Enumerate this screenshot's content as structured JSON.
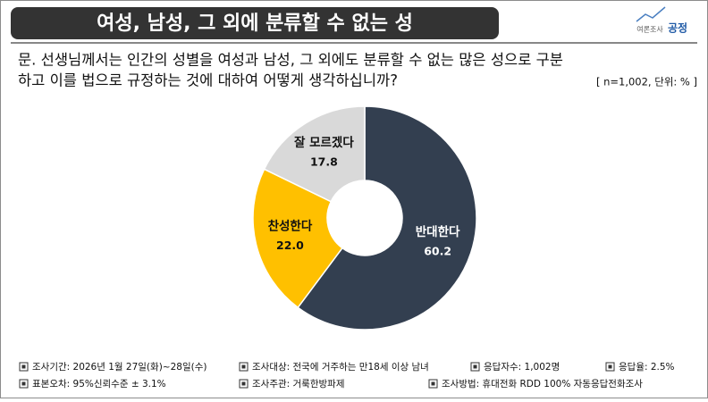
{
  "chart_data": {
    "type": "donut",
    "title": "여성, 남성, 그 외에 분류할 수 없는 성",
    "subtitle": [
      "문. 선생님께서는 인간의 성별을 여성과 남성, 그 외에도 분류할 수 없는 많은 성으로 구분",
      "하고 이를 법으로 규정하는 것에 대하여 어떻게 생각하십니까?"
    ],
    "annotation": "[ n=1,002, 단위: % ]",
    "categories": [
      "반대한다",
      "찬성한다",
      "잘 모르겠다"
    ],
    "values": [
      60.2,
      22.0,
      17.8
    ],
    "value_labels": [
      "60.2",
      "22.0",
      "17.8"
    ],
    "colors": [
      "#333f50",
      "#ffc000",
      "#d9d9d9"
    ]
  },
  "logo": {
    "small": "여론조사",
    "name": "공정"
  },
  "footer": [
    [
      "조사기간: 2026년 1월 27일(화)~28일(수)",
      "조사대상: 전국에 거주하는 만18세 이상 남녀",
      "응답자수: 1,002명",
      "응답율: 2.5%"
    ],
    [
      "표본오차: 95%신뢰수준 ± 3.1%",
      "조사주관: 거룩한방파제",
      "조사방법: 휴대전화 RDD 100% 자동응답전화조사"
    ]
  ]
}
